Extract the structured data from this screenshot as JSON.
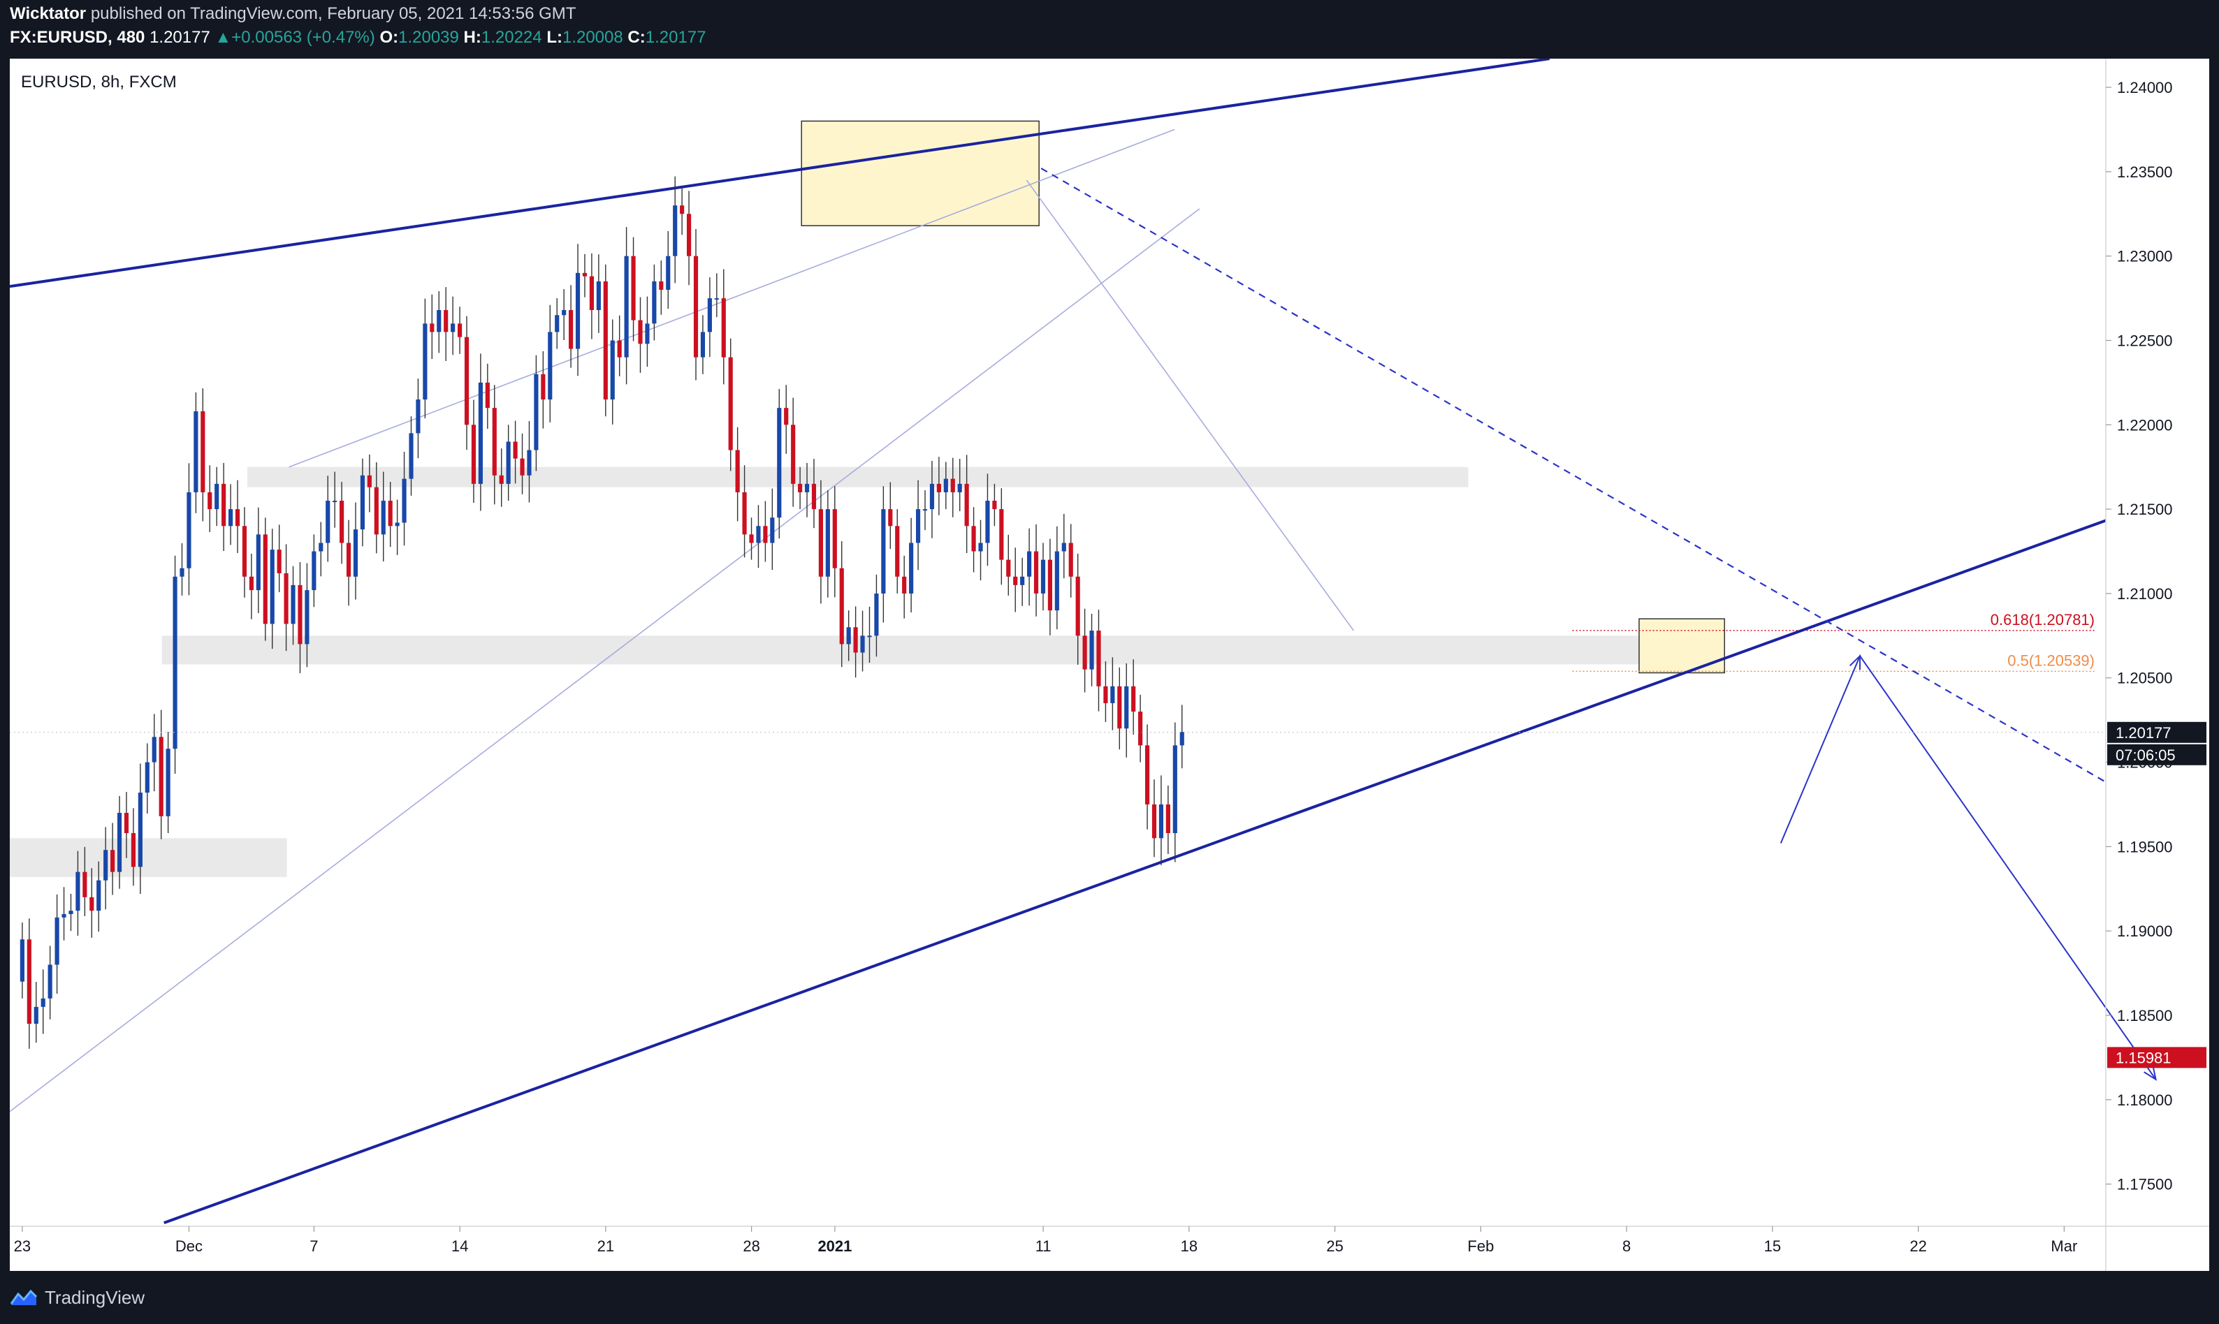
{
  "header": {
    "author": "Wicktator",
    "published_text": "published on TradingView.com, February 05, 2021 14:53:56 GMT",
    "symbol_line": "FX:EURUSD, 480",
    "last": "1.20177",
    "change": "+0.00563 (+0.47%)",
    "open_label": "O:",
    "open": "1.20039",
    "high_label": "H:",
    "high": "1.20224",
    "low_label": "L:",
    "low": "1.20008",
    "close_label": "C:",
    "close": "1.20177",
    "up_arrow": "▲"
  },
  "footer": {
    "brand": "TradingView",
    "logo_icon": "tradingview-logo-icon"
  },
  "colors": {
    "up_candle": "#1848a8",
    "down_candle": "#cc1020",
    "trendline": "#1a23a0",
    "thin_line": "#a7acdd",
    "zone": "#e9e9e9",
    "box": "#fff5cc",
    "fib_618": "#cc1020",
    "fib_05": "#ef8c4a",
    "last_price_bg": "#131722",
    "target_price_bg": "#cc1020"
  },
  "chart_data": {
    "type": "candlestick",
    "title": "EURUSD, 8h, FXCM",
    "ylim": [
      1.1725,
      1.2417
    ],
    "y_ticks": [
      "1.24000",
      "1.23500",
      "1.23000",
      "1.22500",
      "1.22000",
      "1.21500",
      "1.21000",
      "1.20500",
      "1.20000",
      "1.19500",
      "1.19000",
      "1.18500",
      "1.18000",
      "1.17500"
    ],
    "x_ticks": [
      {
        "label": "23",
        "day": 0
      },
      {
        "label": "Dec",
        "day": 8
      },
      {
        "label": "7",
        "day": 14
      },
      {
        "label": "14",
        "day": 21
      },
      {
        "label": "21",
        "day": 28
      },
      {
        "label": "28",
        "day": 35
      },
      {
        "label": "2021",
        "day": 39
      },
      {
        "label": "11",
        "day": 49
      },
      {
        "label": "18",
        "day": 56
      },
      {
        "label": "25",
        "day": 63
      },
      {
        "label": "Feb",
        "day": 70
      },
      {
        "label": "8",
        "day": 77
      },
      {
        "label": "15",
        "day": 84
      },
      {
        "label": "22",
        "day": 91
      },
      {
        "label": "Mar",
        "day": 98
      }
    ],
    "x_range_days": [
      -0.6,
      100
    ],
    "bar_interval_days": 0.3333,
    "first_close": 1.187,
    "closes": [
      1.1895,
      1.1845,
      1.1855,
      1.186,
      1.188,
      1.1908,
      1.191,
      1.1912,
      1.1935,
      1.192,
      1.1912,
      1.193,
      1.1948,
      1.1935,
      1.197,
      1.1958,
      1.1938,
      1.1982,
      1.2,
      1.2015,
      1.1968,
      1.2008,
      1.211,
      1.2115,
      1.216,
      1.2208,
      1.216,
      1.215,
      1.2165,
      1.214,
      1.215,
      1.214,
      1.211,
      1.2102,
      1.2135,
      1.2082,
      1.2126,
      1.2112,
      1.2082,
      1.2105,
      1.207,
      1.2102,
      1.2125,
      1.213,
      1.2155,
      1.2155,
      1.213,
      1.211,
      1.2138,
      1.217,
      1.2163,
      1.2135,
      1.2155,
      1.214,
      1.2142,
      1.2168,
      1.2195,
      1.2215,
      1.226,
      1.2255,
      1.2268,
      1.2255,
      1.226,
      1.2252,
      1.22,
      1.2165,
      1.2225,
      1.221,
      1.217,
      1.2165,
      1.219,
      1.218,
      1.217,
      1.2185,
      1.223,
      1.2215,
      1.2255,
      1.2265,
      1.2268,
      1.2245,
      1.229,
      1.2288,
      1.2268,
      1.2285,
      1.2215,
      1.225,
      1.224,
      1.23,
      1.2262,
      1.2248,
      1.226,
      1.2285,
      1.228,
      1.23,
      1.233,
      1.2325,
      1.23,
      1.224,
      1.2255,
      1.2275,
      1.2275,
      1.224,
      1.2185,
      1.216,
      1.2135,
      1.213,
      1.214,
      1.213,
      1.2145,
      1.221,
      1.22,
      1.2165,
      1.216,
      1.2165,
      1.215,
      1.211,
      1.215,
      1.2115,
      1.207,
      1.208,
      1.2065,
      1.2075,
      1.2075,
      1.21,
      1.215,
      1.214,
      1.211,
      1.21,
      1.213,
      1.215,
      1.215,
      1.2165,
      1.216,
      1.2168,
      1.216,
      1.2165,
      1.214,
      1.2125,
      1.213,
      1.2155,
      1.215,
      1.212,
      1.211,
      1.2105,
      1.211,
      1.2125,
      1.21,
      1.212,
      1.209,
      1.2125,
      1.213,
      1.211,
      1.2075,
      1.2055,
      1.2078,
      1.2045,
      1.2035,
      1.2045,
      1.202,
      1.2045,
      1.203,
      1.201,
      1.1975,
      1.1955,
      1.1975,
      1.1958,
      1.201,
      1.2018
    ],
    "zones": [
      {
        "from_day": -0.6,
        "to_day": 12.7,
        "low": 1.1932,
        "high": 1.1955
      },
      {
        "from_day": 10.8,
        "to_day": 69.4,
        "low": 1.2163,
        "high": 1.2175
      },
      {
        "from_day": 6.7,
        "to_day": 80.7,
        "low": 1.2058,
        "high": 1.2075
      }
    ],
    "boxes": [
      {
        "from_day": 37.4,
        "to_day": 48.8,
        "low": 1.2318,
        "high": 1.238
      },
      {
        "from_day": 77.6,
        "to_day": 81.7,
        "low": 1.2053,
        "high": 1.2085
      }
    ],
    "trendlines": [
      {
        "style": "thick",
        "x1": -0.6,
        "y1": 1.2282,
        "x2": 73.3,
        "y2": 1.2417
      },
      {
        "style": "thick",
        "x1": 6.8,
        "y1": 1.1727,
        "x2": 111.8,
        "y2": 1.2196
      },
      {
        "style": "thin",
        "x1": -0.6,
        "y1": 1.1793,
        "x2": 56.5,
        "y2": 1.2328
      },
      {
        "style": "thin",
        "x1": 12.8,
        "y1": 1.2175,
        "x2": 55.3,
        "y2": 1.2375
      },
      {
        "style": "thin",
        "x1": 48.2,
        "y1": 1.2345,
        "x2": 63.9,
        "y2": 1.2078
      },
      {
        "style": "dashed",
        "x1": 48.9,
        "y1": 1.2352,
        "x2": 107.2,
        "y2": 1.1937
      }
    ],
    "fib_levels": [
      {
        "label": "0.618(1.20781)",
        "value": 1.20781,
        "from_day": 74.4
      },
      {
        "label": "0.5(1.20539)",
        "value": 1.20539,
        "from_day": 74.4
      }
    ],
    "projection": [
      {
        "day": 84.4,
        "price": 1.1952
      },
      {
        "day": 88.2,
        "price": 1.2063
      },
      {
        "day": 102.4,
        "price": 1.1812
      }
    ],
    "price_tags": [
      {
        "label": "1.20177",
        "sub": "07:06:05",
        "value": 1.20177,
        "kind": "last"
      },
      {
        "label": "1.15981",
        "value": 1.1825,
        "kind": "target"
      }
    ]
  }
}
